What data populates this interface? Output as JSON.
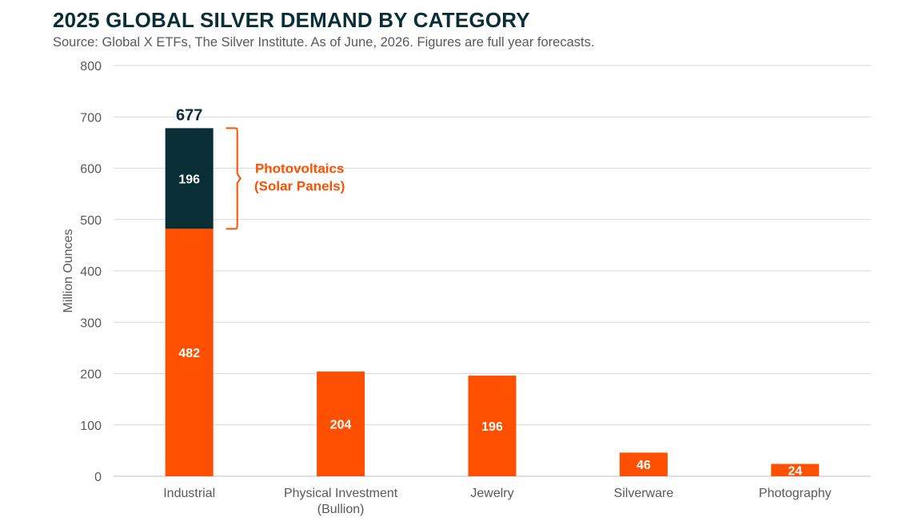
{
  "header": {
    "title": "2025 GLOBAL SILVER DEMAND BY CATEGORY",
    "subtitle": "Source: Global X ETFs, The Silver Institute. As of June, 2026. Figures are full year forecasts."
  },
  "chart_data": {
    "type": "bar",
    "stacked": true,
    "ylabel": "Million Ounces",
    "ylim": [
      0,
      800
    ],
    "yticks": [
      0,
      100,
      200,
      300,
      400,
      500,
      600,
      700,
      800
    ],
    "grid": true,
    "categories": [
      [
        "Industrial"
      ],
      [
        "Physical Investment",
        "(Bullion)"
      ],
      [
        "Jewelry"
      ],
      [
        "Silverware"
      ],
      [
        "Photography"
      ]
    ],
    "series": [
      {
        "color": "#fe5000",
        "values": [
          482,
          204,
          196,
          46,
          24
        ],
        "labels": [
          "482",
          "204",
          "196",
          "46",
          "24"
        ]
      },
      {
        "color": "#0a2e36",
        "values": [
          196,
          0,
          0,
          0,
          0
        ],
        "labels": [
          "196",
          "",
          "",
          "",
          ""
        ]
      }
    ],
    "totals": [
      {
        "category_index": 0,
        "label": "677"
      }
    ],
    "annotation": {
      "lines": [
        "Photovoltaics",
        "(Solar Panels)"
      ],
      "color": "#fe5000",
      "range": [
        482,
        678
      ]
    }
  }
}
